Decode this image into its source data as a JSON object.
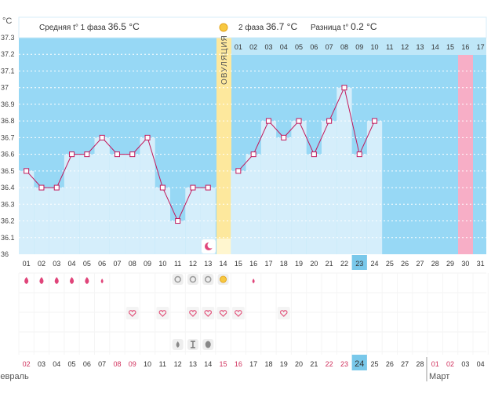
{
  "header": {
    "unit": "°C",
    "phase1": {
      "label": "Средняя t° 1 фаза",
      "value": "36.5 °C"
    },
    "phase2": {
      "label": "2 фаза",
      "value": "36.7 °C"
    },
    "diff": {
      "label": "Разница t°",
      "value": "0.2 °C"
    },
    "sun_icon": "sun-icon"
  },
  "ovulation_label": "ОВУЛЯЦИЯ",
  "colors": {
    "plot_blue": "#97d8f5",
    "bar": "#d5eefb",
    "grid": "#ffffff",
    "line": "#c2185b",
    "ovulation": "#fde89d",
    "marked": "#f7aec6",
    "highlight": "#79c8ea",
    "red_text": "#d0305c",
    "heart": "#e2577e",
    "blood": "#e0457a"
  },
  "chart_data": {
    "type": "line",
    "ylabel": "°C",
    "ylim": [
      36,
      37.3
    ],
    "yticks": [
      "36",
      "36.1",
      "36.2",
      "36.3",
      "36.4",
      "36.5",
      "36.6",
      "36.7",
      "36.8",
      "36.9",
      "37",
      "37.1",
      "37.2",
      "37.3"
    ],
    "cycle_days": [
      "01",
      "02",
      "03",
      "04",
      "05",
      "06",
      "07",
      "08",
      "09",
      "10",
      "11",
      "12",
      "13",
      "14",
      "15",
      "16",
      "17",
      "18",
      "19",
      "20",
      "21",
      "22",
      "23",
      "24",
      "25",
      "26",
      "27",
      "28",
      "29",
      "30",
      "31"
    ],
    "series": [
      {
        "values": [
          36.5,
          36.4,
          36.4,
          36.6,
          36.6,
          36.7,
          36.6,
          36.6,
          36.7,
          36.4,
          36.2,
          36.4,
          36.4,
          null,
          36.5,
          36.6,
          36.8,
          36.7,
          36.8,
          36.6,
          36.8,
          37.0,
          36.6,
          36.8,
          null,
          null,
          null,
          null,
          null,
          null,
          null
        ]
      }
    ],
    "ovulation_day": "14",
    "post_ovulation_days": [
      "01",
      "02",
      "03",
      "04",
      "05",
      "06",
      "07",
      "08",
      "09",
      "10",
      "11",
      "12",
      "13",
      "14",
      "15",
      "16",
      "17"
    ],
    "post_ovulation_marked": "16",
    "today_cycle_day": "23",
    "calendar_dates": [
      "02",
      "03",
      "04",
      "05",
      "06",
      "07",
      "08",
      "09",
      "10",
      "11",
      "12",
      "13",
      "14",
      "15",
      "16",
      "17",
      "18",
      "19",
      "20",
      "21",
      "22",
      "23",
      "24",
      "25",
      "26",
      "27",
      "28",
      "01",
      "02",
      "03",
      "04"
    ],
    "calendar_red_dates": [
      0,
      6,
      7,
      13,
      14,
      20,
      21,
      27,
      28
    ],
    "calendar_highlight": 22,
    "months": [
      "Февраль",
      "Март"
    ]
  },
  "symptoms": {
    "bleeding": {
      "large": [
        0,
        1,
        2,
        3,
        4
      ],
      "small": [
        5,
        15
      ]
    },
    "mucus": [
      10,
      11,
      12
    ],
    "sun": [
      13
    ],
    "moon": [
      13
    ],
    "hearts": [
      7,
      9,
      11,
      12,
      13,
      14,
      17
    ],
    "tests": {
      "drop": 10,
      "hourglass": 11,
      "egg": 12
    }
  }
}
